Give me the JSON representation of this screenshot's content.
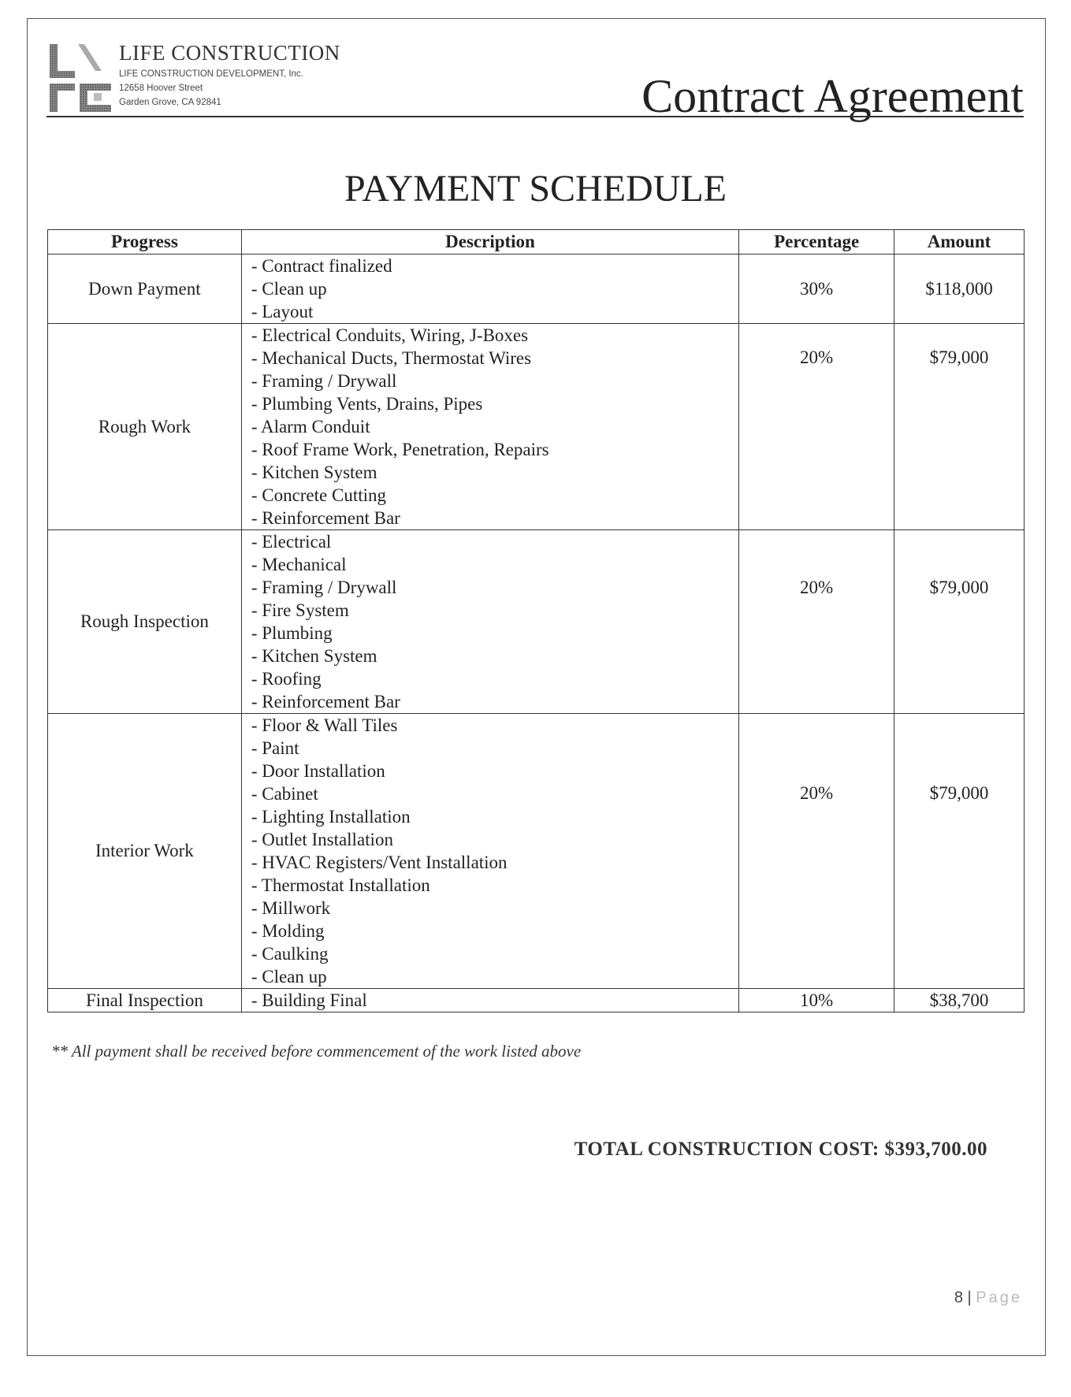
{
  "header": {
    "company_name": "LIFE CONSTRUCTION",
    "company_legal": "LIFE CONSTRUCTION DEVELOPMENT, Inc.",
    "address_line1": "12658 Hoover Street",
    "address_line2": "Garden Grove, CA 92841",
    "logo_text": "LFC",
    "document_title": "Contract Agreement"
  },
  "schedule": {
    "title": "PAYMENT SCHEDULE",
    "columns": [
      "Progress",
      "Description",
      "Percentage",
      "Amount"
    ],
    "rows": [
      {
        "progress": "Down Payment",
        "items": [
          "- Contract finalized",
          "- Clean up",
          "- Layout"
        ],
        "percentage": "30%",
        "amount": "$118,000"
      },
      {
        "progress": "Rough Work",
        "items": [
          "- Electrical Conduits, Wiring, J-Boxes",
          "- Mechanical Ducts, Thermostat Wires",
          "- Framing / Drywall",
          "- Plumbing Vents, Drains, Pipes",
          "- Alarm Conduit",
          "- Roof Frame Work, Penetration, Repairs",
          "- Kitchen System",
          "- Concrete Cutting",
          "- Reinforcement Bar"
        ],
        "percentage": "20%",
        "amount": "$79,000"
      },
      {
        "progress": "Rough Inspection",
        "items": [
          "- Electrical",
          "- Mechanical",
          "- Framing / Drywall",
          "- Fire System",
          "- Plumbing",
          "- Kitchen System",
          "- Roofing",
          "- Reinforcement Bar"
        ],
        "percentage": "20%",
        "amount": "$79,000"
      },
      {
        "progress": "Interior Work",
        "items": [
          "- Floor & Wall Tiles",
          "- Paint",
          "- Door Installation",
          "- Cabinet",
          "- Lighting Installation",
          "- Outlet Installation",
          "- HVAC Registers/Vent Installation",
          "- Thermostat Installation",
          "- Millwork",
          "- Molding",
          "- Caulking",
          "- Clean up"
        ],
        "percentage": "20%",
        "amount": "$79,000"
      },
      {
        "progress": "Final Inspection",
        "items": [
          "- Building Final"
        ],
        "percentage": "10%",
        "amount": "$38,700"
      }
    ]
  },
  "note": "** All payment shall be received before commencement of the work listed above",
  "total": "TOTAL CONSTRUCTION COST: $393,700.00",
  "footer": {
    "page_number": "8",
    "separator": "|",
    "page_label": "Page"
  }
}
